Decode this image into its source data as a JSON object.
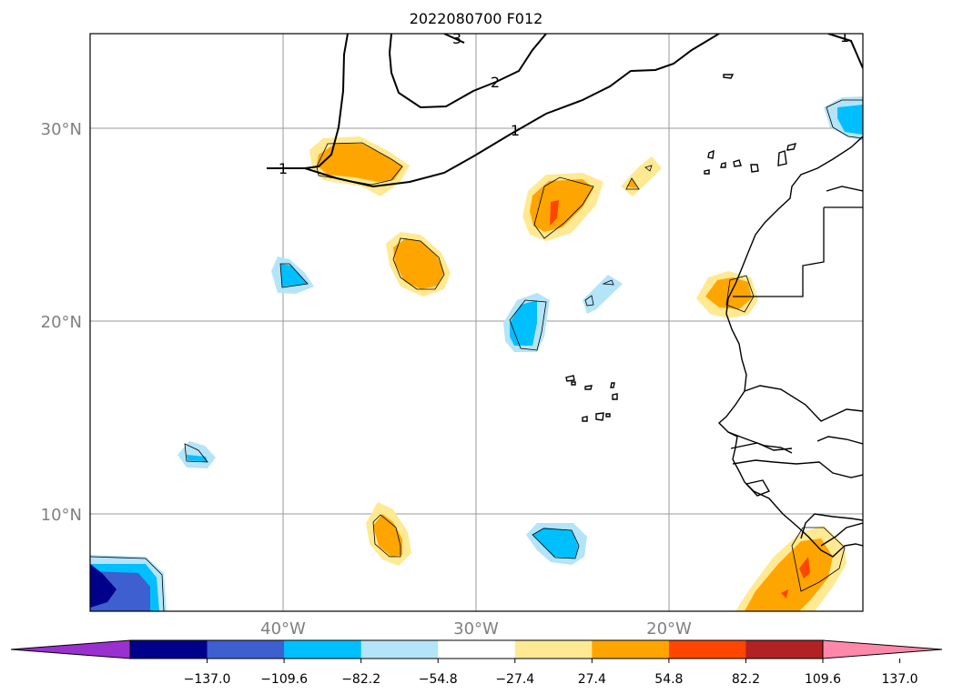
{
  "title": "2022080700 F012",
  "map": {
    "lat_labels": [
      "30°N",
      "20°N",
      "10°N"
    ],
    "lon_labels": [
      "40°W",
      "30°W",
      "20°W"
    ],
    "grid": true,
    "isoline_labels": [
      "3",
      "2",
      "1",
      "1",
      "1"
    ]
  },
  "colorbar": {
    "tick_labels": [
      "−137.0",
      "−109.6",
      "−82.2",
      "−54.8",
      "−27.4",
      "27.4",
      "54.8",
      "82.2",
      "109.6",
      "137.0"
    ],
    "under_color": "#9b30d0",
    "over_color": "#ff88aa",
    "colors": [
      "#00008b",
      "#3d5fcf",
      "#00bfff",
      "#b4e4f8",
      "#ffffff",
      "#ffe992",
      "#ffa500",
      "#ff4500",
      "#b22222"
    ],
    "extend": "both"
  }
}
